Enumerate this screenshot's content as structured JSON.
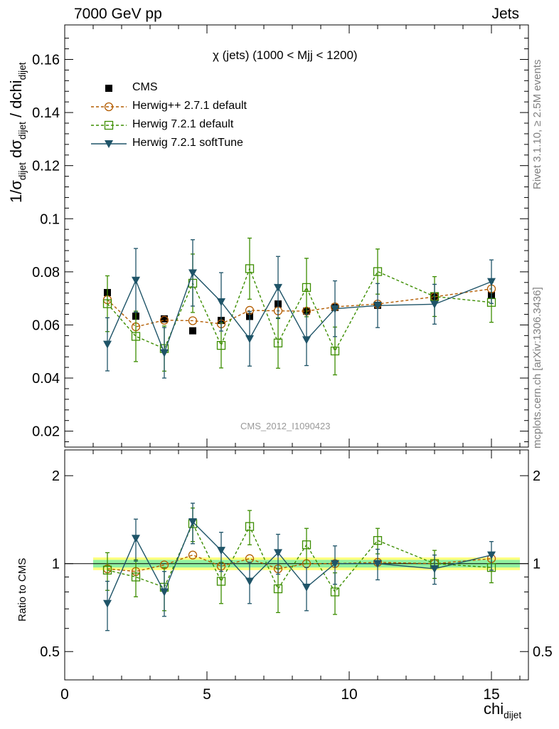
{
  "header": {
    "left": "7000 GeV pp",
    "right": "Jets"
  },
  "side_labels": {
    "top": "Rivet 3.1.10, ≥ 2.5M events",
    "bottom": "mcplots.cern.ch [arXiv:1306.3436]"
  },
  "watermark": "CMS_2012_I1090423",
  "chart_data": {
    "type": "line",
    "title": "χ (jets) (1000 < Mjj < 1200)",
    "xlabel": {
      "main": "chi",
      "sub": "dijet"
    },
    "ylabel": {
      "p1": "1/σ",
      "s1": "dijet",
      "p2": " dσ",
      "s2": "dijet",
      "p3": " / dchi",
      "s3": "dijet"
    },
    "ratio_ylabel": "Ratio to CMS",
    "xlim": [
      0,
      16.3
    ],
    "ylim": [
      0.014,
      0.173
    ],
    "ratio_ylim": [
      0.4,
      2.45
    ],
    "ratio_log_scale": true,
    "xticks": [
      "0",
      "5",
      "10",
      "15"
    ],
    "yticks": [
      "0.02",
      "0.04",
      "0.06",
      "0.08",
      "0.1",
      "0.12",
      "0.14",
      "0.16"
    ],
    "ratio_yticks": [
      "0.5",
      "1",
      "2"
    ],
    "ratio_band": {
      "x": [
        1,
        16
      ],
      "yellow": [
        0.95,
        1.05
      ],
      "green": [
        0.97,
        1.03
      ]
    },
    "series": [
      {
        "name": "CMS",
        "color": "#000000",
        "marker": "square-filled",
        "x": [
          1.5,
          2.5,
          3.5,
          4.5,
          5.5,
          6.5,
          7.5,
          8.5,
          9.5,
          11,
          13,
          15
        ],
        "y": [
          0.0722,
          0.0633,
          0.0623,
          0.0578,
          0.0617,
          0.0632,
          0.0679,
          0.0652,
          0.0666,
          0.0674,
          0.0707,
          0.0711
        ],
        "err": [
          0.0012,
          0.0012,
          0.0012,
          0.0012,
          0.0012,
          0.0012,
          0.0012,
          0.0012,
          0.0012,
          0.0012,
          0.0012,
          0.0012
        ],
        "ratio": [
          1,
          1,
          1,
          1,
          1,
          1,
          1,
          1,
          1,
          1,
          1,
          1
        ]
      },
      {
        "name": "Herwig++ 2.7.1 default",
        "color": "#b35c00",
        "marker": "circle-open",
        "x": [
          1.5,
          2.5,
          3.5,
          4.5,
          5.5,
          6.5,
          7.5,
          8.5,
          9.5,
          11,
          13,
          15
        ],
        "y": [
          0.0695,
          0.0593,
          0.0618,
          0.0616,
          0.0604,
          0.0655,
          0.0653,
          0.0652,
          0.0668,
          0.0679,
          0.0706,
          0.0736
        ],
        "err": [
          0.0007,
          0.0007,
          0.0007,
          0.0007,
          0.0007,
          0.0007,
          0.0007,
          0.0007,
          0.0007,
          0.0007,
          0.0007,
          0.0007
        ],
        "ratio": [
          0.96,
          0.94,
          0.99,
          1.07,
          0.98,
          1.04,
          0.96,
          1.0,
          1.0,
          1.01,
          1.0,
          1.04
        ]
      },
      {
        "name": "Herwig 7.2.1 default",
        "color": "#3c8d00",
        "marker": "square-open",
        "x": [
          1.5,
          2.5,
          3.5,
          4.5,
          5.5,
          6.5,
          7.5,
          8.5,
          9.5,
          11,
          13,
          15
        ],
        "y": [
          0.068,
          0.0557,
          0.0511,
          0.0757,
          0.0523,
          0.0812,
          0.0532,
          0.0741,
          0.0502,
          0.0801,
          0.0707,
          0.0685
        ],
        "err": [
          0.0105,
          0.0095,
          0.0085,
          0.011,
          0.0085,
          0.0115,
          0.0095,
          0.011,
          0.009,
          0.0085,
          0.0075,
          0.0075
        ],
        "ratio": [
          0.95,
          0.9,
          0.83,
          1.37,
          0.87,
          1.34,
          0.82,
          1.16,
          0.8,
          1.2,
          1.0,
          0.97
        ],
        "ratio_err": [
          0.14,
          0.13,
          0.14,
          0.18,
          0.14,
          0.18,
          0.14,
          0.16,
          0.13,
          0.12,
          0.11,
          0.11
        ]
      },
      {
        "name": "Herwig 7.2.1 softTune",
        "color": "#1f5468",
        "marker": "triangle-down-filled",
        "x": [
          1.5,
          2.5,
          3.5,
          4.5,
          5.5,
          6.5,
          7.5,
          8.5,
          9.5,
          11,
          13,
          15
        ],
        "y": [
          0.0527,
          0.0768,
          0.0495,
          0.0796,
          0.0687,
          0.0548,
          0.0741,
          0.0544,
          0.0661,
          0.0673,
          0.0678,
          0.0763
        ],
        "err": [
          0.01,
          0.012,
          0.0095,
          0.0125,
          0.011,
          0.0103,
          0.0117,
          0.0097,
          0.0105,
          0.0083,
          0.0075,
          0.0082
        ],
        "ratio": [
          0.73,
          1.22,
          0.8,
          1.39,
          1.11,
          0.87,
          1.09,
          0.83,
          1.0,
          1.0,
          0.96,
          1.07
        ],
        "ratio_err": [
          0.14,
          0.2,
          0.14,
          0.22,
          0.17,
          0.14,
          0.17,
          0.14,
          0.15,
          0.12,
          0.11,
          0.12
        ]
      }
    ]
  }
}
